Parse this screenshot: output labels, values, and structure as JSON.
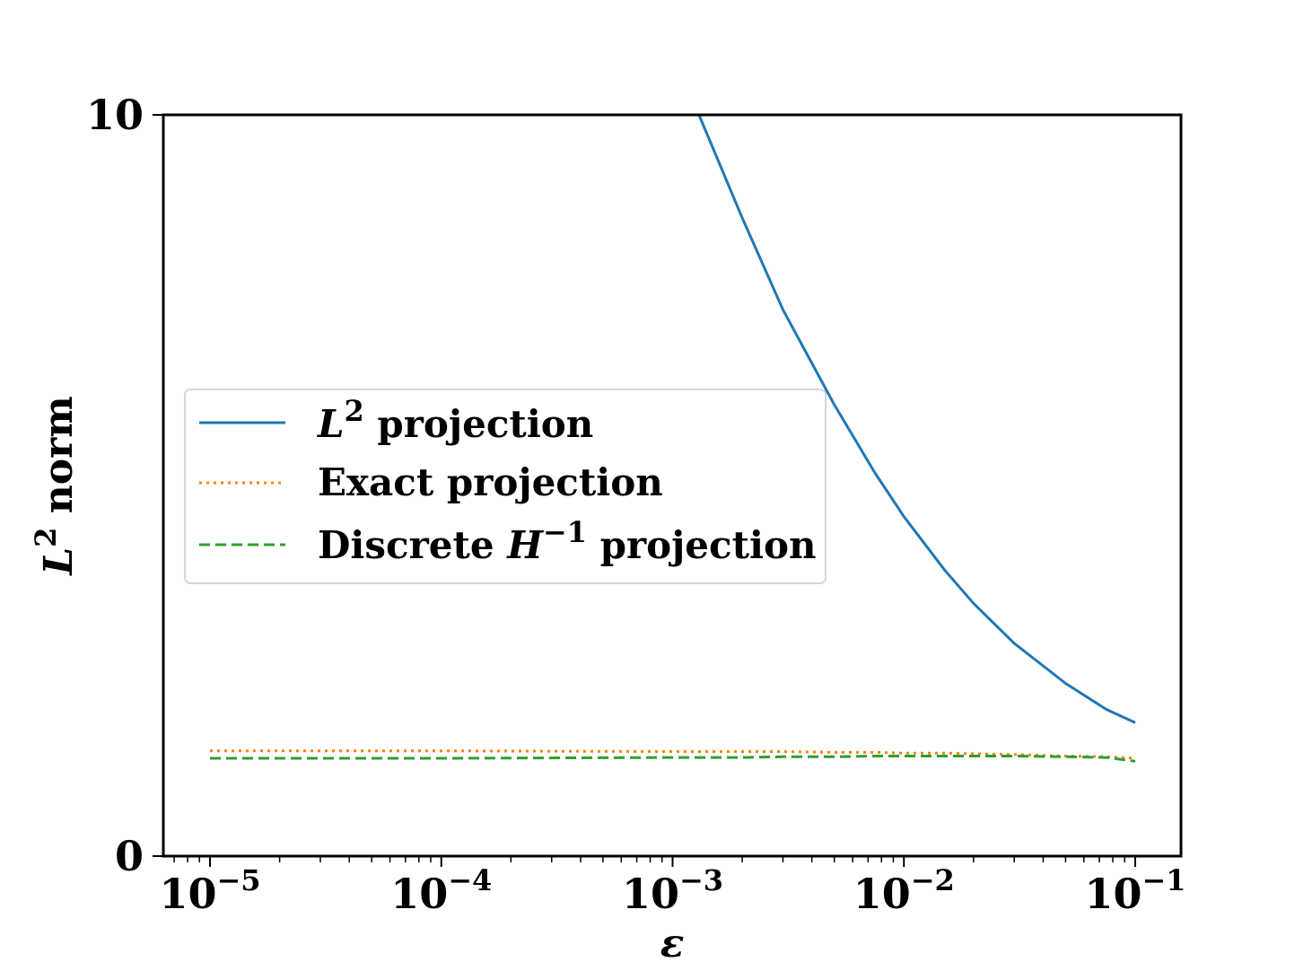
{
  "chart_data": {
    "type": "line",
    "xscale": "log",
    "xlim": [
      1e-05,
      0.1
    ],
    "ylim": [
      0,
      10
    ],
    "xlabel": "ε",
    "ylabel": {
      "base": "L",
      "sup": "2",
      "rest": " norm"
    },
    "x_ticks": [
      {
        "base": "10",
        "exp": "−5",
        "value": 1e-05
      },
      {
        "base": "10",
        "exp": "−4",
        "value": 0.0001
      },
      {
        "base": "10",
        "exp": "−3",
        "value": 0.001
      },
      {
        "base": "10",
        "exp": "−2",
        "value": 0.01
      },
      {
        "base": "10",
        "exp": "−1",
        "value": 0.1
      }
    ],
    "y_ticks": [
      {
        "label": "0",
        "value": 0
      },
      {
        "label": "10",
        "value": 10
      }
    ],
    "x": [
      1e-05,
      0.0001,
      0.001,
      0.0013,
      0.002,
      0.003,
      0.005,
      0.0075,
      0.01,
      0.015,
      0.02,
      0.03,
      0.05,
      0.075,
      0.1
    ],
    "series": [
      {
        "name": "L2 projection",
        "label": {
          "base": "L",
          "sup": "2",
          "rest": " projection"
        },
        "color": "#1f77b4",
        "dash": "solid",
        "values": [
          null,
          null,
          null,
          10.0,
          8.61,
          7.37,
          6.09,
          5.17,
          4.58,
          3.86,
          3.41,
          2.87,
          2.33,
          1.98,
          1.8
        ]
      },
      {
        "name": "Exact projection",
        "label": {
          "base": "Exact projection",
          "sup": "",
          "rest": ""
        },
        "color": "#ff7f0e",
        "dash": "dotted",
        "values": [
          1.42,
          1.42,
          1.41,
          1.41,
          1.41,
          1.41,
          1.4,
          1.4,
          1.39,
          1.39,
          1.38,
          1.37,
          1.35,
          1.34,
          1.32
        ]
      },
      {
        "name": "Discrete H-1 projection",
        "label": {
          "base": "Discrete ",
          "ital": "H",
          "sup": "−1",
          "rest": " projection"
        },
        "color": "#2ca02c",
        "dash": "dashed",
        "values": [
          1.32,
          1.32,
          1.33,
          1.33,
          1.33,
          1.34,
          1.34,
          1.35,
          1.35,
          1.35,
          1.35,
          1.35,
          1.34,
          1.33,
          1.28
        ]
      }
    ],
    "legend": {
      "position": "center-left"
    }
  }
}
